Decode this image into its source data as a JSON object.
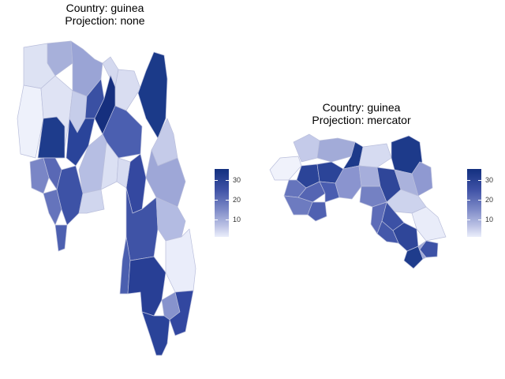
{
  "panels": [
    {
      "title_line1": "Country: guinea",
      "title_line2": "Projection: none"
    },
    {
      "title_line1": "Country: guinea",
      "title_line2": "Projection: mercator"
    }
  ],
  "legend": {
    "ticks": [
      "30",
      "20",
      "10"
    ],
    "colors": {
      "high": "#13307f",
      "mid": "#6e7cc0",
      "low": "#eaeefb"
    },
    "range": [
      3,
      36
    ]
  }
}
